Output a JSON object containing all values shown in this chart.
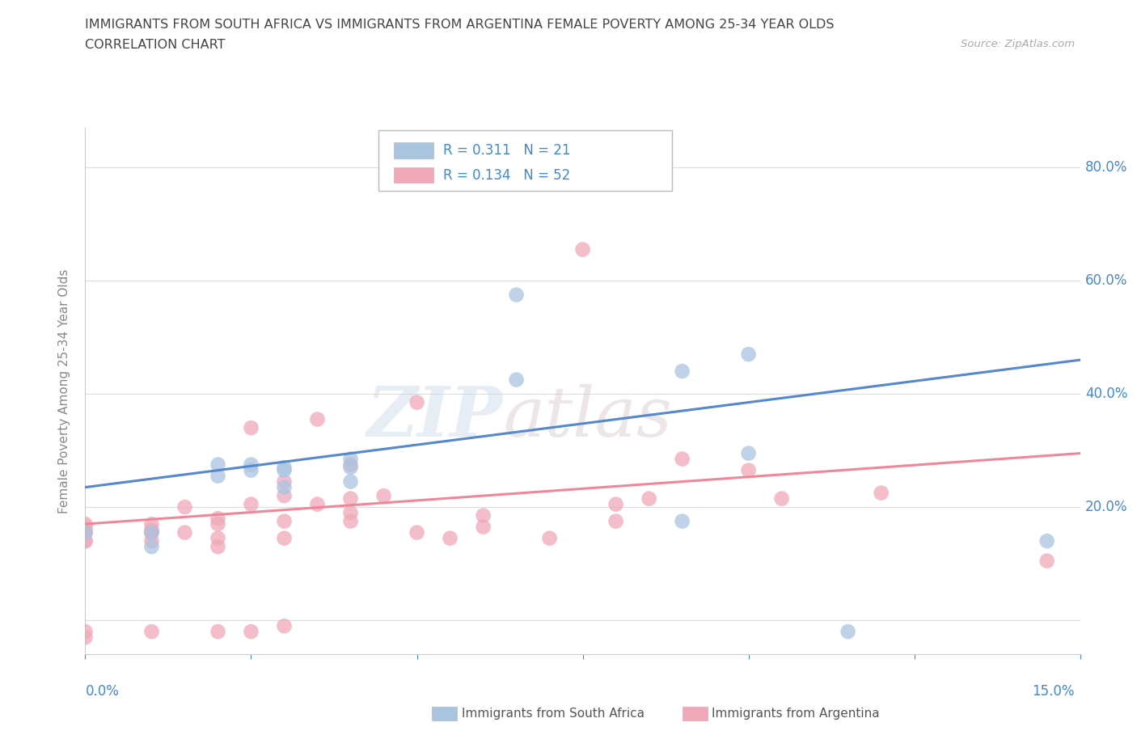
{
  "title_line1": "IMMIGRANTS FROM SOUTH AFRICA VS IMMIGRANTS FROM ARGENTINA FEMALE POVERTY AMONG 25-34 YEAR OLDS",
  "title_line2": "CORRELATION CHART",
  "source": "Source: ZipAtlas.com",
  "ylabel": "Female Poverty Among 25-34 Year Olds",
  "xlim": [
    0.0,
    0.15
  ],
  "ylim": [
    -0.06,
    0.87
  ],
  "yticks": [
    0.0,
    0.2,
    0.4,
    0.6,
    0.8
  ],
  "ytick_labels": [
    "",
    "20.0%",
    "40.0%",
    "60.0%",
    "80.0%"
  ],
  "xticks": [
    0.0,
    0.025,
    0.05,
    0.075,
    0.1,
    0.125,
    0.15
  ],
  "watermark_line1": "ZIP",
  "watermark_line2": "atlas",
  "color_sa": "#aac4e0",
  "color_arg": "#f0a8b8",
  "line_color_sa": "#5588cc",
  "line_color_arg": "#ee8899",
  "grid_color": "#dddddd",
  "title_color": "#444444",
  "axis_label_color": "#888888",
  "tick_color": "#4488cc",
  "sa_scatter_x": [
    0.0,
    0.01,
    0.01,
    0.02,
    0.02,
    0.025,
    0.025,
    0.03,
    0.03,
    0.03,
    0.04,
    0.04,
    0.04,
    0.065,
    0.065,
    0.09,
    0.09,
    0.1,
    0.1,
    0.115,
    0.145
  ],
  "sa_scatter_y": [
    0.155,
    0.13,
    0.155,
    0.255,
    0.275,
    0.265,
    0.275,
    0.235,
    0.265,
    0.27,
    0.245,
    0.27,
    0.285,
    0.425,
    0.575,
    0.44,
    0.175,
    0.295,
    0.47,
    -0.02,
    0.14
  ],
  "arg_scatter_x": [
    0.0,
    0.0,
    0.0,
    0.0,
    0.0,
    0.0,
    0.0,
    0.0,
    0.0,
    0.01,
    0.01,
    0.01,
    0.01,
    0.01,
    0.01,
    0.015,
    0.015,
    0.02,
    0.02,
    0.02,
    0.02,
    0.02,
    0.025,
    0.025,
    0.025,
    0.03,
    0.03,
    0.03,
    0.03,
    0.03,
    0.035,
    0.035,
    0.04,
    0.04,
    0.04,
    0.04,
    0.045,
    0.05,
    0.05,
    0.055,
    0.06,
    0.06,
    0.07,
    0.075,
    0.08,
    0.08,
    0.085,
    0.09,
    0.1,
    0.105,
    0.12,
    0.145
  ],
  "arg_scatter_y": [
    0.14,
    0.14,
    0.155,
    0.155,
    0.16,
    0.165,
    0.17,
    -0.02,
    -0.03,
    0.14,
    0.155,
    0.155,
    0.16,
    0.17,
    -0.02,
    0.155,
    0.2,
    0.13,
    0.145,
    0.17,
    0.18,
    -0.02,
    0.205,
    0.34,
    -0.02,
    0.145,
    0.175,
    0.22,
    0.245,
    -0.01,
    0.205,
    0.355,
    0.175,
    0.19,
    0.215,
    0.275,
    0.22,
    0.155,
    0.385,
    0.145,
    0.165,
    0.185,
    0.145,
    0.655,
    0.175,
    0.205,
    0.215,
    0.285,
    0.265,
    0.215,
    0.225,
    0.105
  ],
  "sa_trend_x": [
    0.0,
    0.15
  ],
  "sa_trend_y": [
    0.235,
    0.46
  ],
  "arg_trend_x": [
    0.0,
    0.15
  ],
  "arg_trend_y": [
    0.17,
    0.295
  ]
}
